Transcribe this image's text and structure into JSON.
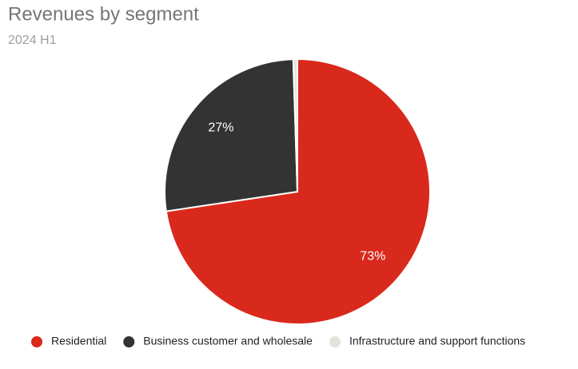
{
  "chart_data": {
    "type": "pie",
    "title": "Revenues by segment",
    "subtitle": "2024 H1",
    "categories": [
      "Residential",
      "Business customer and wholesale",
      "Infrastructure and support functions"
    ],
    "values": [
      73,
      27,
      0.5
    ],
    "value_labels": [
      "73%",
      "27%",
      null
    ],
    "colors": [
      "#d9291c",
      "#333333",
      "#e5e2dc"
    ],
    "legend": "bottom"
  }
}
